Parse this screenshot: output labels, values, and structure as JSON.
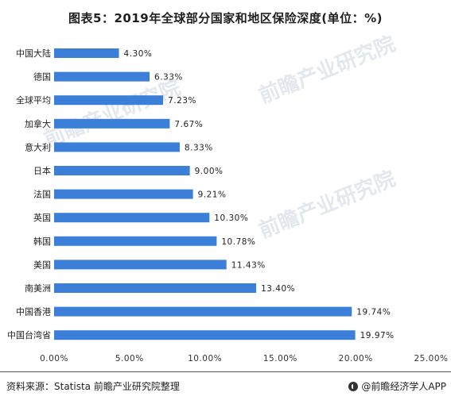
{
  "title": "图表5：2019年全球部分国家和地区保险深度(单位：%)",
  "chart_data": {
    "type": "bar",
    "orientation": "horizontal",
    "title": "图表5：2019年全球部分国家和地区保险深度(单位：%)",
    "xlabel": "",
    "ylabel": "",
    "xlim": [
      0,
      25
    ],
    "x_ticks": [
      "0.00%",
      "5.00%",
      "10.00%",
      "15.00%",
      "20.00%",
      "25.00%"
    ],
    "grid": false,
    "bar_color": "#3c7fd8",
    "categories": [
      "中国大陆",
      "德国",
      "全球平均",
      "加拿大",
      "意大利",
      "日本",
      "法国",
      "英国",
      "韩国",
      "美国",
      "南美洲",
      "中国香港",
      "中国台湾省"
    ],
    "values": [
      4.3,
      6.33,
      7.23,
      7.67,
      8.33,
      9.0,
      9.21,
      10.3,
      10.78,
      11.43,
      13.4,
      19.74,
      19.97
    ],
    "labels": [
      "4.30%",
      "6.33%",
      "7.23%",
      "7.67%",
      "8.33%",
      "9.00%",
      "9.21%",
      "10.30%",
      "10.78%",
      "11.43%",
      "13.40%",
      "19.74%",
      "19.97%"
    ]
  },
  "watermark": {
    "text": "前瞻产业研究院"
  },
  "footer": {
    "source": "资料来源：Statista 前瞻产业研究院整理",
    "brand": "@前瞻经济学人APP"
  }
}
